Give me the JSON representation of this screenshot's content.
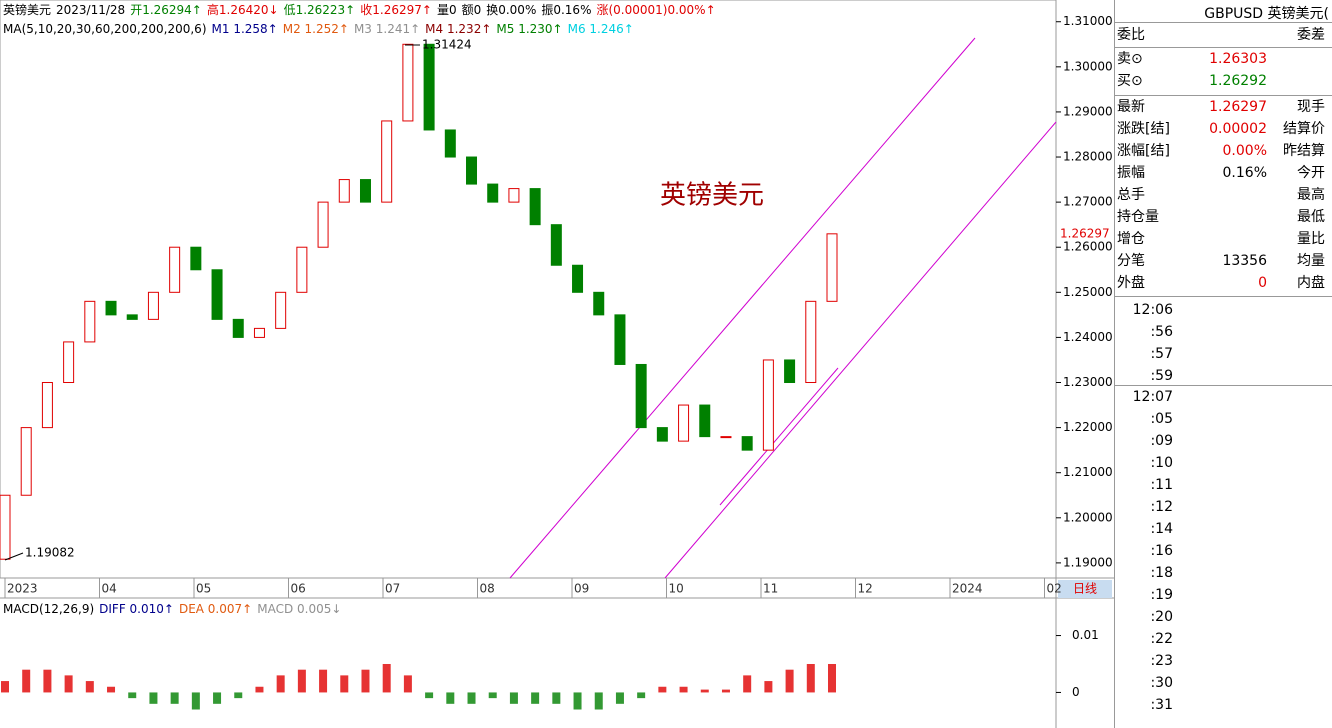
{
  "header": {
    "items": [
      {
        "text": "英镑美元",
        "color": "#000000"
      },
      {
        "text": "2023/11/28",
        "color": "#000000"
      },
      {
        "text": "开1.26294↑",
        "color": "#008000"
      },
      {
        "text": "高1.26420↓",
        "color": "#e00000"
      },
      {
        "text": "低1.26223↑",
        "color": "#008000"
      },
      {
        "text": "收1.26297↑",
        "color": "#e00000"
      },
      {
        "text": "量0",
        "color": "#000000"
      },
      {
        "text": "额0",
        "color": "#000000"
      },
      {
        "text": "换0.00%",
        "color": "#000000"
      },
      {
        "text": "振0.16%",
        "color": "#000000"
      },
      {
        "text": "涨(0.00001)0.00%↑",
        "color": "#e00000"
      }
    ],
    "ma_items": [
      {
        "text": "MA(5,10,20,30,60,200,200,200,6)",
        "color": "#000000"
      },
      {
        "text": "M1 1.258↑",
        "color": "#00008b"
      },
      {
        "text": "M2 1.252↑",
        "color": "#e05a10"
      },
      {
        "text": "M3 1.241↑",
        "color": "#909090"
      },
      {
        "text": "M4 1.232↑",
        "color": "#8b0000"
      },
      {
        "text": "M5 1.230↑",
        "color": "#008000"
      },
      {
        "text": "M6 1.246↑",
        "color": "#00d0e0"
      }
    ]
  },
  "chart_data": {
    "type": "candlestick",
    "title": "英镑美元",
    "closes": [
      1.205,
      1.22,
      1.23,
      1.239,
      1.248,
      1.245,
      1.244,
      1.25,
      1.26,
      1.255,
      1.244,
      1.24,
      1.242,
      1.25,
      1.26,
      1.27,
      1.275,
      1.27,
      1.288,
      1.305,
      1.286,
      1.28,
      1.274,
      1.27,
      1.273,
      1.265,
      1.256,
      1.25,
      1.245,
      1.234,
      1.22,
      1.217,
      1.225,
      1.218,
      1.218,
      1.215,
      1.235,
      1.23,
      1.248,
      1.26297
    ],
    "first_open": 1.19082,
    "up_color": "#e00000",
    "down_color": "#008000",
    "high_label": "1.31424",
    "low_label": "1.19082",
    "last_label": "1.26297",
    "ylim": [
      1.18665,
      1.31482
    ],
    "yticks": [
      {
        "value": 1.31,
        "label": "1.31000"
      },
      {
        "value": 1.3,
        "label": "1.30000"
      },
      {
        "value": 1.29,
        "label": "1.29000"
      },
      {
        "value": 1.28,
        "label": "1.28000"
      },
      {
        "value": 1.27,
        "label": "1.27000"
      },
      {
        "value": 1.26,
        "label": "1.26000"
      },
      {
        "value": 1.25,
        "label": "1.25000"
      },
      {
        "value": 1.24,
        "label": "1.24000"
      },
      {
        "value": 1.23,
        "label": "1.23000"
      },
      {
        "value": 1.22,
        "label": "1.22000"
      },
      {
        "value": 1.21,
        "label": "1.21000"
      },
      {
        "value": 1.2,
        "label": "1.20000"
      },
      {
        "value": 1.19,
        "label": "1.19000"
      }
    ],
    "months": [
      "2023",
      "04",
      "05",
      "06",
      "07",
      "08",
      "09",
      "10",
      "11",
      "12",
      "2024",
      "02"
    ],
    "period": "日线"
  },
  "macd": {
    "type": "bar",
    "legend": [
      {
        "text": "MACD(12,26,9)",
        "color": "#000000"
      },
      {
        "text": "DIFF 0.010↑",
        "color": "#00008b"
      },
      {
        "text": "DEA 0.007↑",
        "color": "#e05a10"
      },
      {
        "text": "MACD 0.005↓",
        "color": "#909090"
      }
    ],
    "values": [
      0.002,
      0.004,
      0.004,
      0.003,
      0.002,
      0.001,
      -0.001,
      -0.002,
      -0.002,
      -0.003,
      -0.002,
      -0.001,
      0.001,
      0.003,
      0.004,
      0.004,
      0.003,
      0.004,
      0.005,
      0.003,
      -0.001,
      -0.002,
      -0.002,
      -0.001,
      -0.002,
      -0.002,
      -0.002,
      -0.003,
      -0.003,
      -0.002,
      -0.001,
      0.001,
      0.001,
      0.0005,
      0.0005,
      0.003,
      0.002,
      0.004,
      0.005,
      0.005
    ],
    "ylim": [
      -0.00625,
      0.0166
    ],
    "yticks": [
      0.01,
      0
    ]
  },
  "panel": {
    "title": "GBPUSD 英镑美元(",
    "rows": [
      {
        "label": "委比",
        "label2": "委差"
      },
      {
        "label": "卖⊙",
        "value": "1.26303",
        "color": "#e00000"
      },
      {
        "label": "买⊙",
        "value": "1.26292",
        "color": "#008000"
      },
      {
        "label": "最新",
        "value": "1.26297",
        "color": "#e00000",
        "label2": "现手"
      },
      {
        "label": "涨跌[结]",
        "value": "0.00002",
        "color": "#e00000",
        "label2": "结算价"
      },
      {
        "label": "涨幅[结]",
        "value": "0.00%",
        "color": "#e00000",
        "label2": "昨结算"
      },
      {
        "label": "振幅",
        "value": "0.16%",
        "color": "#000000",
        "label2": "今开"
      },
      {
        "label": "总手",
        "label2": "最高"
      },
      {
        "label": "持仓量",
        "label2": "最低"
      },
      {
        "label": "增仓",
        "label2": "量比"
      },
      {
        "label": "分笔",
        "value": "13356",
        "color": "#000000",
        "label2": "均量"
      },
      {
        "label": "外盘",
        "value": "0",
        "color": "#e00000",
        "label2": "内盘"
      }
    ],
    "times": [
      "12:06",
      ":56",
      ":57",
      ":59",
      "12:07",
      ":05",
      ":09",
      ":10",
      ":11",
      ":12",
      ":14",
      ":16",
      ":18",
      ":19",
      ":20",
      ":22",
      ":23",
      ":30",
      ":31"
    ]
  }
}
